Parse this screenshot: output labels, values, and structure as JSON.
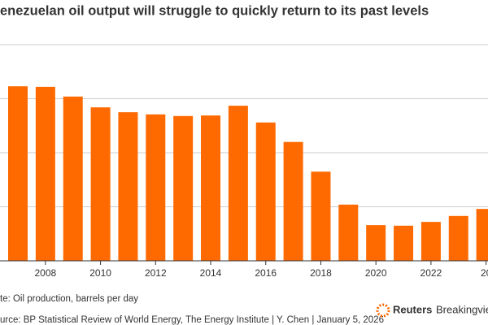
{
  "chart_data": {
    "type": "bar",
    "title": "enezuelan oil output will struggle to quickly return to its past levels",
    "note": "te: Oil production, barrels per day",
    "source": "urce: BP Statistical Review of World Energy, The Energy Institute | Y. Chen | January 5, 2026",
    "logo": [
      "Reuters",
      "Breakingview"
    ],
    "categories": [
      null,
      "2008",
      null,
      "2010",
      null,
      "2012",
      null,
      "2014",
      null,
      "2016",
      null,
      "2018",
      null,
      "2020",
      null,
      "2022",
      null,
      "20"
    ],
    "values": [
      3.23,
      3.22,
      3.04,
      2.84,
      2.75,
      2.71,
      2.68,
      2.69,
      2.87,
      2.56,
      2.2,
      1.65,
      1.04,
      0.66,
      0.65,
      0.72,
      0.83,
      0.96
    ],
    "color": "#ff6a00",
    "ylim": [
      0,
      4
    ],
    "yticks": [
      0,
      1,
      2,
      3,
      4
    ],
    "grid": true
  }
}
